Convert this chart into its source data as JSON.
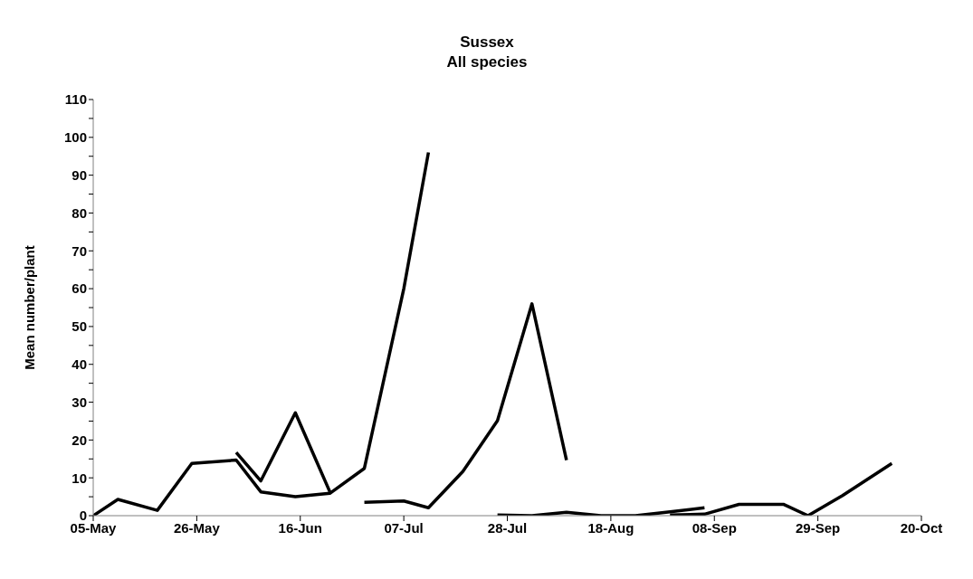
{
  "chart_data": {
    "type": "line",
    "title": "Sussex",
    "subtitle": "All species",
    "ylabel": "Mean number/plant",
    "xlim": [
      "--05-05",
      "--10-20"
    ],
    "xticks": [
      {
        "value": "--05-05",
        "label": "05-May"
      },
      {
        "value": "--05-26",
        "label": "26-May"
      },
      {
        "value": "--06-16",
        "label": "16-Jun"
      },
      {
        "value": "--07-07",
        "label": "07-Jul"
      },
      {
        "value": "--07-28",
        "label": "28-Jul"
      },
      {
        "value": "--08-18",
        "label": "18-Aug"
      },
      {
        "value": "--09-08",
        "label": "08-Sep"
      },
      {
        "value": "--09-29",
        "label": "29-Sep"
      },
      {
        "value": "--10-20",
        "label": "20-Oct"
      }
    ],
    "ylim": [
      0,
      110
    ],
    "yticks": [
      0,
      {
        "value": 5,
        "label": null
      },
      10,
      {
        "value": 15,
        "label": null
      },
      20,
      {
        "value": 25,
        "label": null
      },
      30,
      {
        "value": 35,
        "label": null
      },
      40,
      {
        "value": 45,
        "label": null
      },
      50,
      {
        "value": 55,
        "label": null
      },
      60,
      {
        "value": 65,
        "label": null
      },
      70,
      {
        "value": 75,
        "label": null
      },
      80,
      {
        "value": 85,
        "label": null
      },
      90,
      {
        "value": 95,
        "label": null
      },
      100,
      {
        "value": 105,
        "label": null
      },
      110
    ],
    "grid": false,
    "marker": "none",
    "line_style": "solid",
    "series": [
      {
        "color": "#000000",
        "x": [
          "--05-05",
          "--05-10",
          "--05-18",
          "--05-25",
          "--06-03",
          "--06-08",
          "--06-15",
          "--06-22",
          "--06-29",
          "--07-07",
          "--07-12"
        ],
        "values": [
          0,
          4.3,
          1.4,
          13.8,
          14.7,
          6.3,
          5.0,
          5.9,
          12.5,
          60,
          96
        ]
      },
      {
        "color": "#000000",
        "x": [
          "--06-03",
          "--06-08",
          "--06-15",
          "--06-22"
        ],
        "values": [
          16.7,
          9.2,
          27.2,
          6.3
        ]
      },
      {
        "color": "#000000",
        "x": [
          "--06-29",
          "--07-07",
          "--07-12",
          "--07-19",
          "--07-26",
          "--08-02",
          "--08-09"
        ],
        "values": [
          3.5,
          3.9,
          2.1,
          11.7,
          25.1,
          56,
          14.7
        ]
      },
      {
        "color": "#000000",
        "x": [
          "--07-26",
          "--08-02",
          "--08-09",
          "--08-16",
          "--08-23",
          "--08-30",
          "--09-06"
        ],
        "values": [
          0.2,
          0,
          0.9,
          0,
          0,
          1,
          2.1
        ]
      },
      {
        "color": "#000000",
        "x": [
          "--08-30",
          "--09-06",
          "--09-13",
          "--09-22",
          "--09-27",
          "--10-04",
          "--10-14"
        ],
        "values": [
          0.2,
          0.4,
          3,
          3,
          0,
          5.3,
          13.8
        ]
      }
    ]
  }
}
